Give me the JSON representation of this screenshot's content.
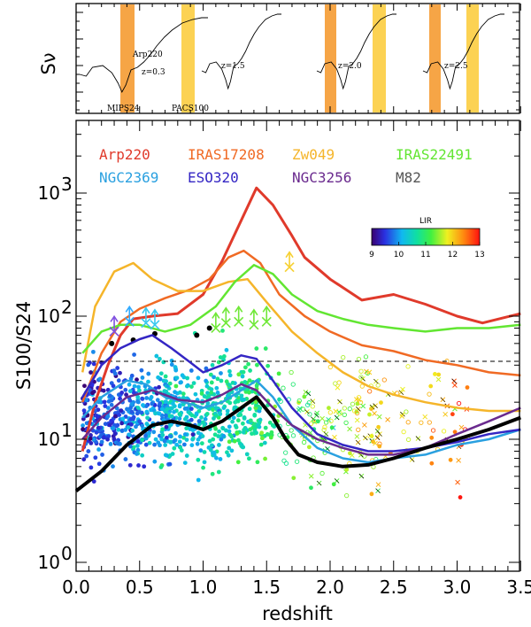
{
  "top_panel": {
    "ylabel": "Sν",
    "sed_labels": [
      "Arp220",
      "z=0.3",
      "z=1.5",
      "z=2.0",
      "z=2.5"
    ],
    "band_labels": [
      "MIPS24",
      "PACS100"
    ],
    "seds": [
      {
        "z": 0.3,
        "label": "z=0.3"
      },
      {
        "z": 1.5,
        "label": "z=1.5"
      },
      {
        "z": 2.0,
        "label": "z=2.0"
      },
      {
        "z": 2.5,
        "label": "z=2.5"
      }
    ],
    "bands": [
      {
        "name": "MIPS24",
        "color": "#f5a03c"
      },
      {
        "name": "PACS100",
        "color": "#fcd04a"
      }
    ]
  },
  "chart_data": {
    "type": "line",
    "xlabel": "redshift",
    "ylabel": "S100/S24",
    "xlim": [
      0.0,
      3.5
    ],
    "ylim": [
      1,
      5000
    ],
    "yscale": "log",
    "xticks": [
      "0.0",
      "0.5",
      "1.0",
      "1.5",
      "2.0",
      "2.5",
      "3.0",
      "3.5"
    ],
    "yticks": [
      {
        "value": 1,
        "label": "10",
        "exp": "0"
      },
      {
        "value": 10,
        "label": "10",
        "exp": "1"
      },
      {
        "value": 100,
        "label": "10",
        "exp": "2"
      },
      {
        "value": 1000,
        "label": "10",
        "exp": "3"
      }
    ],
    "threshold": {
      "value": 43,
      "style": "dashed"
    },
    "series": [
      {
        "name": "Arp220",
        "color": "#e03a2b",
        "width": 3,
        "x": [
          0.05,
          0.15,
          0.25,
          0.35,
          0.45,
          0.6,
          0.8,
          1.0,
          1.15,
          1.3,
          1.42,
          1.55,
          1.7,
          1.8,
          2.0,
          2.25,
          2.5,
          2.75,
          3.0,
          3.2,
          3.5
        ],
        "y": [
          8,
          20,
          40,
          70,
          95,
          100,
          105,
          150,
          280,
          600,
          1100,
          800,
          450,
          300,
          200,
          135,
          150,
          125,
          100,
          88,
          105
        ]
      },
      {
        "name": "IRAS17208",
        "color": "#f06a24",
        "width": 2.5,
        "x": [
          0.05,
          0.2,
          0.35,
          0.5,
          0.7,
          0.9,
          1.05,
          1.2,
          1.32,
          1.45,
          1.6,
          1.8,
          2.0,
          2.25,
          2.5,
          2.75,
          3.0,
          3.25,
          3.5
        ],
        "y": [
          20,
          50,
          90,
          115,
          140,
          165,
          200,
          300,
          340,
          270,
          150,
          100,
          75,
          58,
          52,
          44,
          40,
          35,
          33
        ]
      },
      {
        "name": "Zw049",
        "color": "#f5b52a",
        "width": 2.5,
        "x": [
          0.05,
          0.15,
          0.3,
          0.45,
          0.6,
          0.8,
          1.0,
          1.2,
          1.35,
          1.5,
          1.7,
          1.9,
          2.1,
          2.3,
          2.5,
          2.75,
          3.0,
          3.25,
          3.5
        ],
        "y": [
          35,
          120,
          230,
          270,
          200,
          160,
          160,
          190,
          200,
          130,
          75,
          50,
          35,
          27,
          23,
          20,
          18,
          17,
          17
        ]
      },
      {
        "name": "IRAS22491",
        "color": "#62e632",
        "width": 2.5,
        "x": [
          0.05,
          0.2,
          0.35,
          0.5,
          0.7,
          0.9,
          1.1,
          1.25,
          1.4,
          1.55,
          1.7,
          1.9,
          2.1,
          2.3,
          2.5,
          2.75,
          3.0,
          3.25,
          3.5
        ],
        "y": [
          50,
          75,
          85,
          85,
          75,
          85,
          120,
          190,
          260,
          220,
          150,
          110,
          95,
          85,
          80,
          75,
          80,
          80,
          85
        ]
      },
      {
        "name": "NGC2369",
        "color": "#2aa0e0",
        "width": 2.5,
        "x": [
          0.05,
          0.2,
          0.4,
          0.55,
          0.7,
          0.85,
          1.0,
          1.15,
          1.3,
          1.42,
          1.55,
          1.7,
          1.9,
          2.1,
          2.3,
          2.5,
          2.75,
          3.0,
          3.25,
          3.5
        ],
        "y": [
          15,
          22,
          30,
          28,
          22,
          20,
          18,
          20,
          25,
          30,
          22,
          13,
          8.5,
          7,
          6.5,
          7,
          7.5,
          9,
          10,
          12
        ]
      },
      {
        "name": "ESO320",
        "color": "#3426c4",
        "width": 2.5,
        "x": [
          0.05,
          0.2,
          0.35,
          0.5,
          0.6,
          0.75,
          0.9,
          1.0,
          1.15,
          1.3,
          1.42,
          1.55,
          1.7,
          1.9,
          2.1,
          2.3,
          2.5,
          2.75,
          3.0,
          3.25,
          3.5
        ],
        "y": [
          22,
          40,
          55,
          65,
          70,
          55,
          42,
          35,
          40,
          48,
          45,
          30,
          18,
          11,
          9,
          8,
          8,
          8.5,
          9.5,
          11,
          12
        ]
      },
      {
        "name": "NGC3256",
        "color": "#6a2a8e",
        "width": 2.5,
        "x": [
          0.05,
          0.2,
          0.4,
          0.6,
          0.8,
          1.0,
          1.15,
          1.3,
          1.42,
          1.55,
          1.7,
          1.9,
          2.1,
          2.3,
          2.5,
          2.75,
          3.0,
          3.25,
          3.5
        ],
        "y": [
          10,
          15,
          22,
          25,
          21,
          20,
          23,
          28,
          25,
          18,
          13,
          10,
          8.5,
          7.5,
          7.5,
          8.5,
          11,
          14,
          18
        ]
      },
      {
        "name": "M82",
        "color": "#000000",
        "width": 4,
        "x": [
          0.0,
          0.2,
          0.4,
          0.6,
          0.75,
          0.9,
          1.0,
          1.15,
          1.3,
          1.42,
          1.55,
          1.65,
          1.75,
          1.9,
          2.1,
          2.3,
          2.5,
          2.75,
          3.0,
          3.25,
          3.5
        ],
        "y": [
          3.8,
          5.5,
          9,
          13,
          14,
          13,
          12,
          14,
          18,
          22,
          15,
          10,
          7.5,
          6.5,
          6,
          6.2,
          7,
          8.5,
          10,
          12,
          15
        ]
      }
    ],
    "colorbar": {
      "title": "LIR",
      "range": [
        9,
        13
      ],
      "ticks": [
        "9",
        "10",
        "11",
        "12",
        "13"
      ]
    },
    "lower_limits": [
      {
        "x": 0.42,
        "y": 90,
        "color": "#30aaff"
      },
      {
        "x": 0.55,
        "y": 88,
        "color": "#38c8f0"
      },
      {
        "x": 0.62,
        "y": 85,
        "color": "#38c8f0"
      },
      {
        "x": 1.28,
        "y": 90,
        "color": "#70e838"
      },
      {
        "x": 1.4,
        "y": 85,
        "color": "#70e838"
      },
      {
        "x": 1.5,
        "y": 90,
        "color": "#70e838"
      },
      {
        "x": 1.18,
        "y": 88,
        "color": "#70e838"
      },
      {
        "x": 1.1,
        "y": 80,
        "color": "#70e838"
      },
      {
        "x": 1.68,
        "y": 250,
        "color": "#f6d031"
      },
      {
        "x": 0.3,
        "y": 75,
        "color": "#8050e0"
      }
    ]
  }
}
